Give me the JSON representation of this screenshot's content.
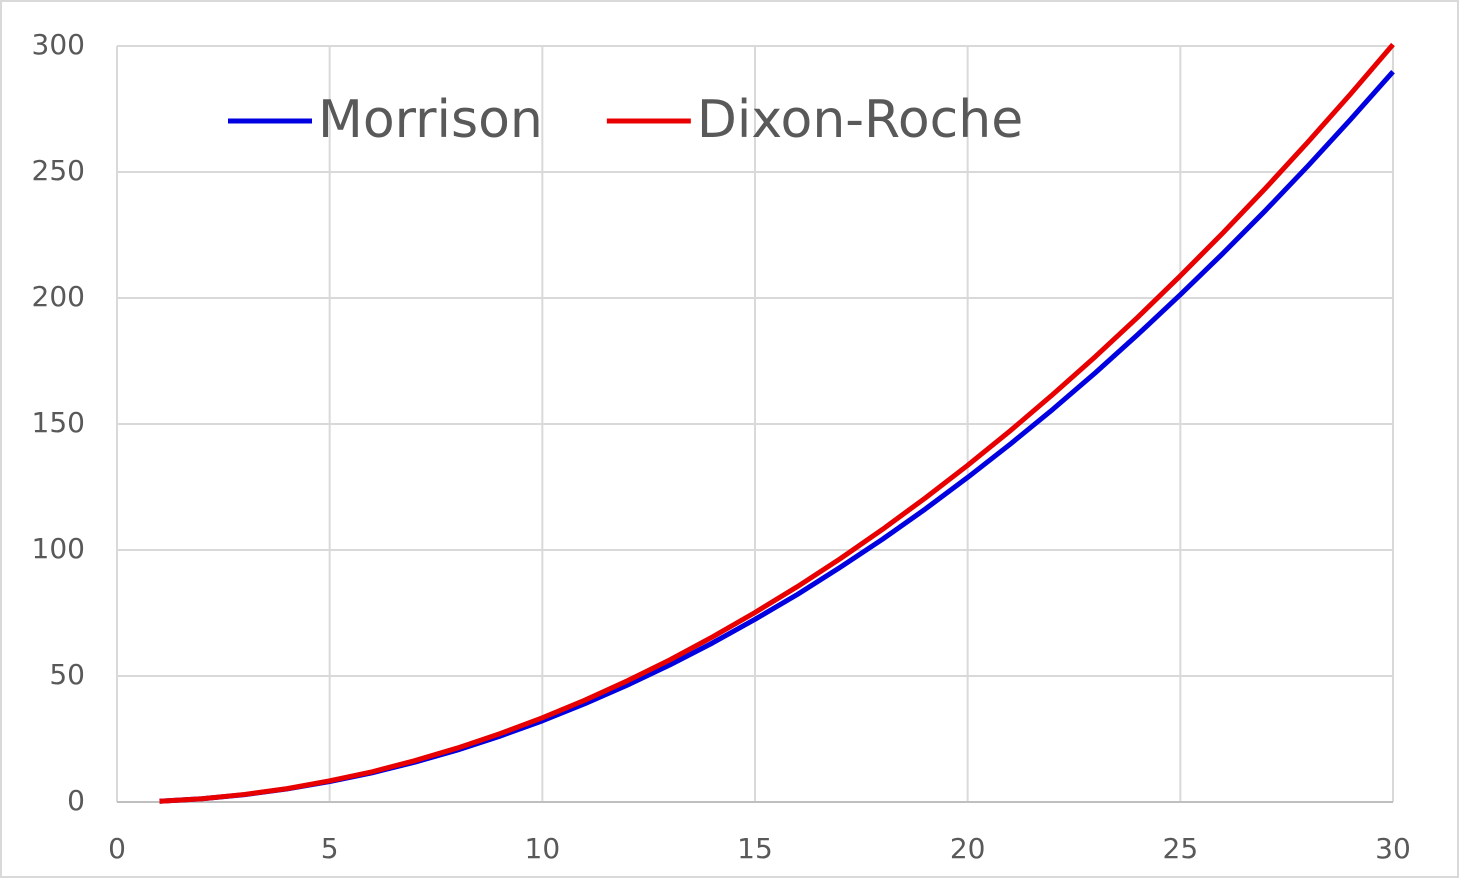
{
  "chart_data": {
    "type": "line",
    "x": [
      1,
      2,
      3,
      4,
      5,
      6,
      7,
      8,
      9,
      10,
      11,
      12,
      13,
      14,
      15,
      16,
      17,
      18,
      19,
      20,
      21,
      22,
      23,
      24,
      25,
      26,
      27,
      28,
      29,
      30
    ],
    "series": [
      {
        "name": "Morrison",
        "color": "#0000e0",
        "values": [
          0.3,
          1.3,
          2.9,
          5.2,
          8.1,
          11.6,
          15.8,
          20.6,
          26.1,
          32.2,
          39.0,
          46.4,
          54.4,
          63.1,
          72.5,
          82.4,
          93.1,
          104.3,
          116.2,
          128.8,
          142.0,
          155.8,
          170.3,
          185.5,
          201.3,
          217.7,
          234.7,
          252.4,
          270.8,
          289.8
        ]
      },
      {
        "name": "Dixon-Roche",
        "color": "#e80000",
        "values": [
          0.3,
          1.3,
          3.0,
          5.3,
          8.4,
          12.0,
          16.4,
          21.4,
          27.1,
          33.4,
          40.4,
          48.1,
          56.4,
          65.5,
          75.2,
          85.5,
          96.5,
          108.2,
          120.6,
          133.6,
          147.3,
          161.7,
          176.7,
          192.4,
          208.8,
          225.8,
          243.5,
          261.9,
          280.9,
          300.6
        ]
      }
    ],
    "xlim": [
      0,
      30
    ],
    "xticks": [
      0,
      5,
      10,
      15,
      20,
      25,
      30
    ],
    "ylim": [
      0,
      300
    ],
    "yticks": [
      0,
      50,
      100,
      150,
      200,
      250,
      300
    ],
    "grid": true,
    "legend": "top-left"
  }
}
